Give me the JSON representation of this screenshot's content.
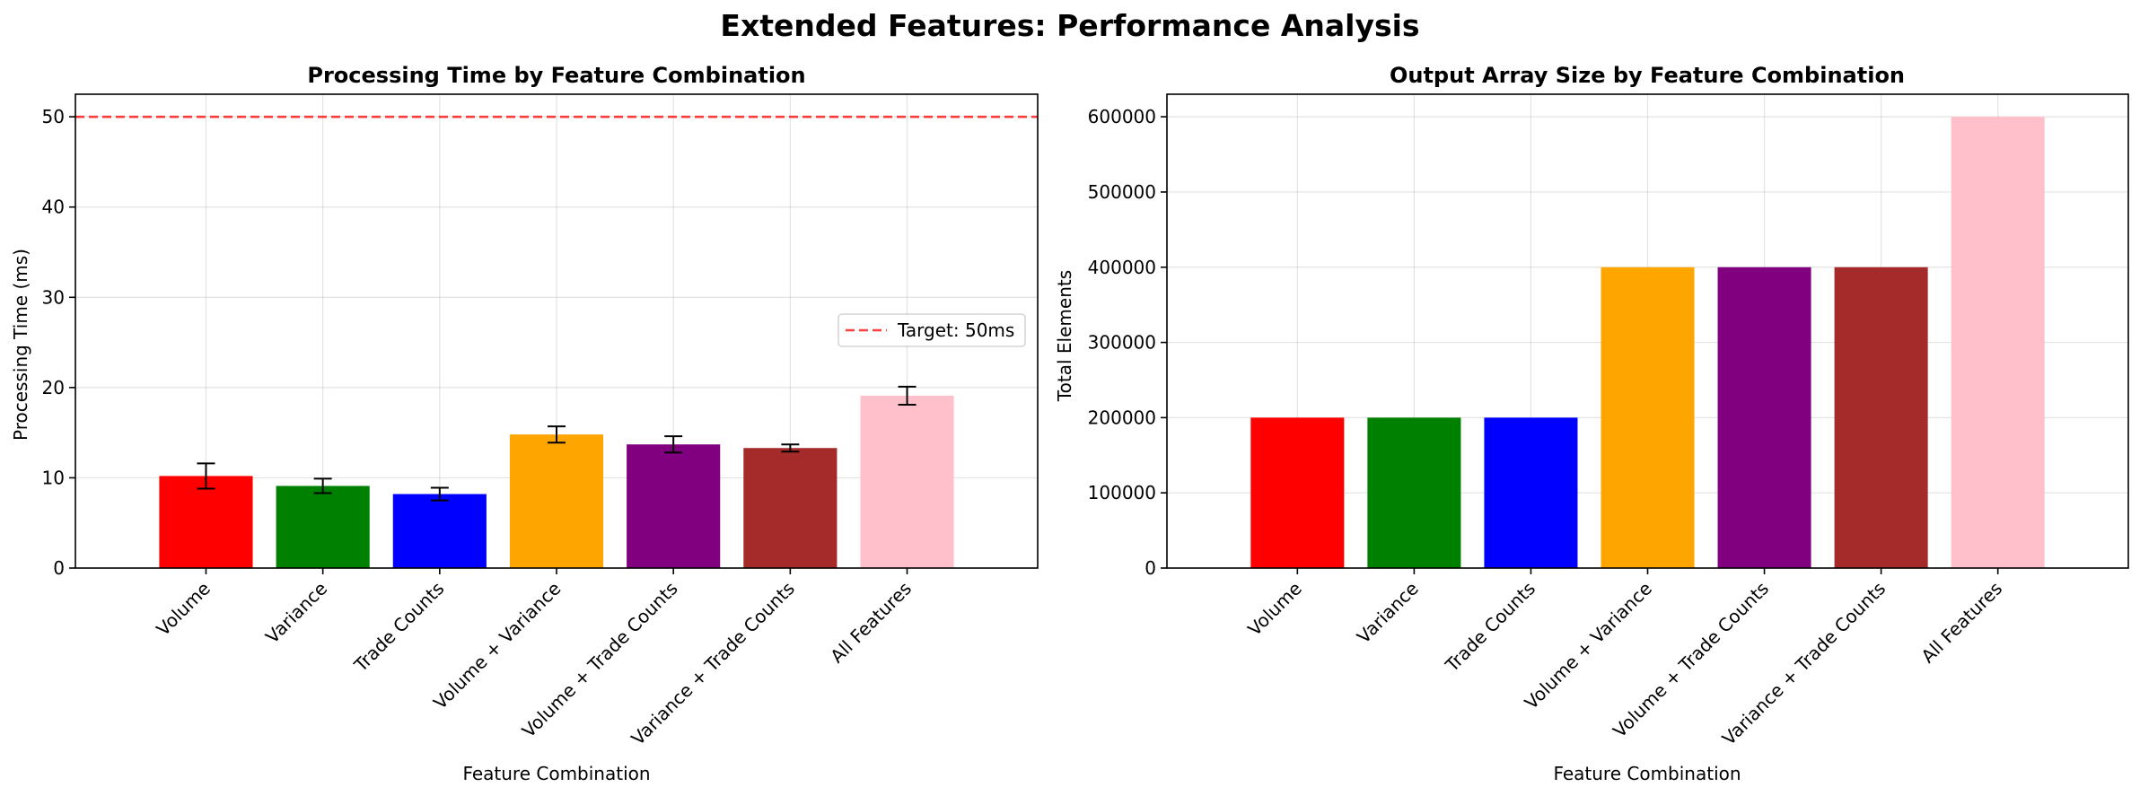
{
  "figure": {
    "suptitle": "Extended Features: Performance Analysis"
  },
  "chart_data": [
    {
      "type": "bar",
      "title": "Processing Time by Feature Combination",
      "xlabel": "Feature Combination",
      "ylabel": "Processing Time (ms)",
      "categories": [
        "Volume",
        "Variance",
        "Trade Counts",
        "Volume + Variance",
        "Volume + Trade Counts",
        "Variance + Trade Counts",
        "All Features"
      ],
      "values": [
        10.2,
        9.1,
        8.2,
        14.8,
        13.7,
        13.3,
        19.1
      ],
      "errors": [
        1.4,
        0.8,
        0.7,
        0.9,
        0.9,
        0.4,
        1.0
      ],
      "colors": [
        "#ff0000",
        "#008000",
        "#0000ff",
        "#ffa500",
        "#800080",
        "#a52a2a",
        "#ffc0cb"
      ],
      "ylim": [
        0,
        52.5
      ],
      "yticks": [
        0,
        10,
        20,
        30,
        40,
        50
      ],
      "grid": true,
      "reference_line": {
        "value": 50,
        "label": "Target: 50ms",
        "color": "#ff0000",
        "style": "dashed"
      },
      "legend": {
        "position": "center-right",
        "entries": [
          "Target: 50ms"
        ]
      }
    },
    {
      "type": "bar",
      "title": "Output Array Size by Feature Combination",
      "xlabel": "Feature Combination",
      "ylabel": "Total Elements",
      "categories": [
        "Volume",
        "Variance",
        "Trade Counts",
        "Volume + Variance",
        "Volume + Trade Counts",
        "Variance + Trade Counts",
        "All Features"
      ],
      "values": [
        200000,
        200000,
        200000,
        400000,
        400000,
        400000,
        600000
      ],
      "colors": [
        "#ff0000",
        "#008000",
        "#0000ff",
        "#ffa500",
        "#800080",
        "#a52a2a",
        "#ffc0cb"
      ],
      "ylim": [
        0,
        630000
      ],
      "yticks": [
        0,
        100000,
        200000,
        300000,
        400000,
        500000,
        600000
      ],
      "grid": true
    }
  ]
}
